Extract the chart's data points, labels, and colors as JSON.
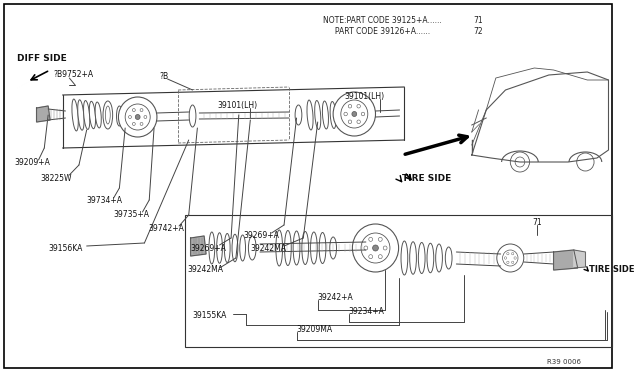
{
  "bg_color": "#ffffff",
  "lc": "#555555",
  "note1": "NOTE:PART CODE 39125+A......",
  "note2": "     PART CODE 39126+A......",
  "n1": "71",
  "n2": "72",
  "ref": "R39 0006",
  "diff_side": "DIFF SIDE",
  "tire_side": "TIRE SIDE",
  "part_labels": [
    "?B9752+A",
    "?B",
    "39101(LH)",
    "39101(LH)",
    "39209+A",
    "38225W",
    "39734+A",
    "39735+A",
    "39742+A",
    "39156KA",
    "39242MA",
    "39269+A",
    "39269+A",
    "39242MA",
    "39242+A",
    "39155KA",
    "39234+A",
    "39209MA",
    "71"
  ]
}
